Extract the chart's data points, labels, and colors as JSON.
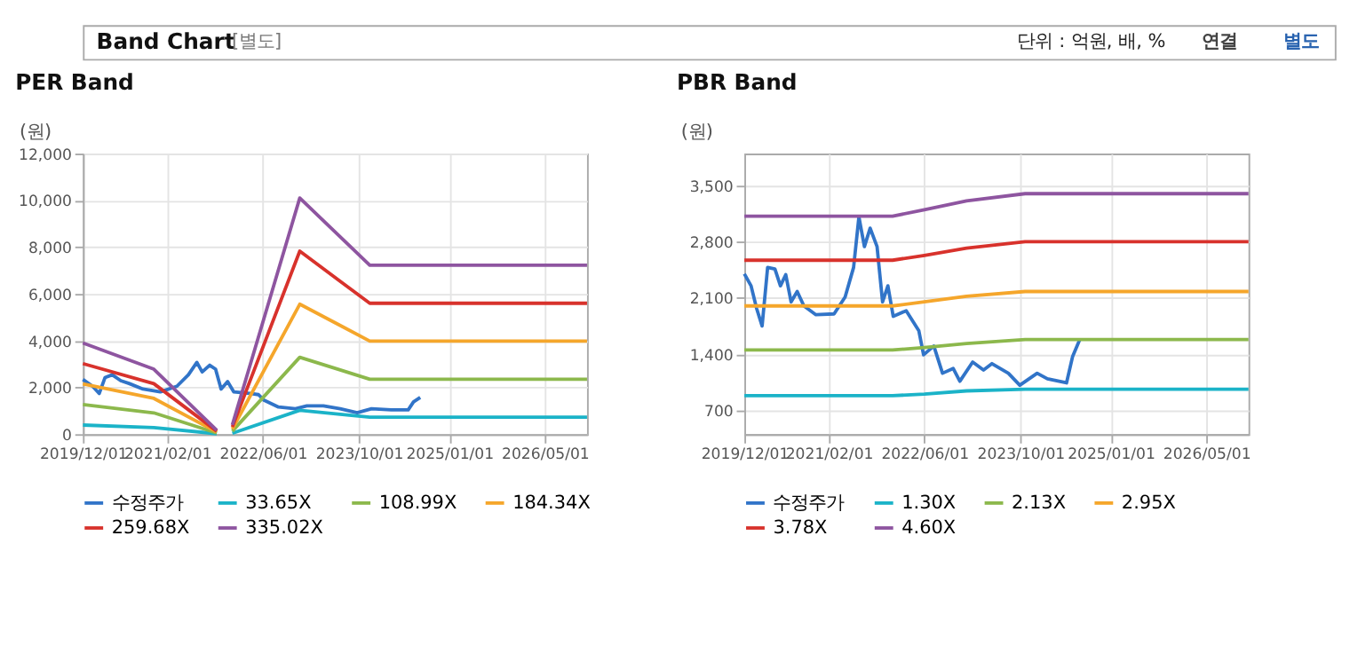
{
  "chart_data": [
    {
      "type": "line",
      "title": "PER Band",
      "ylabel": "(원)",
      "annotations": [
        "Band Chart",
        "[별도]",
        "단위 : 억원, 배, %",
        "연결",
        "별도"
      ],
      "xlim": [
        "2019-12-01",
        "2026-12-01"
      ],
      "xticks": [
        {
          "value": "2019-12-01",
          "label": "2019/12/01"
        },
        {
          "value": "2021-02-01",
          "label": "2021/02/01"
        },
        {
          "value": "2022-06-01",
          "label": "2022/06/01"
        },
        {
          "value": "2023-10-01",
          "label": "2023/10/01"
        },
        {
          "value": "2025-01-01",
          "label": "2025/01/01"
        },
        {
          "value": "2026-05-01",
          "label": "2026/05/01"
        }
      ],
      "ylim": [
        0,
        12000
      ],
      "yticks": [
        {
          "value": 0,
          "label": "0"
        },
        {
          "value": 2000,
          "label": "2,000"
        },
        {
          "value": 4000,
          "label": "4,000"
        },
        {
          "value": 6000,
          "label": "6,000"
        },
        {
          "value": 8000,
          "label": "8,000"
        },
        {
          "value": 10000,
          "label": "10,000"
        },
        {
          "value": 12000,
          "label": "12,000"
        }
      ],
      "grid": true,
      "legend": "bottom",
      "series": [
        {
          "name": "수정주가",
          "color": "#3174c8",
          "x": [
            "2019-12-01",
            "2020-01-19",
            "2020-02-22",
            "2020-03-22",
            "2020-04-28",
            "2020-06-10",
            "2020-07-22",
            "2020-10-01",
            "2020-12-28",
            "2021-03-22",
            "2021-05-19",
            "2021-07-01",
            "2021-07-28",
            "2021-09-04",
            "2021-10-04",
            "2021-11-01",
            "2021-12-04",
            "2022-01-04",
            "2022-03-28",
            "2022-05-10",
            "2022-06-07",
            "2022-08-19",
            "2022-11-13",
            "2023-01-10",
            "2023-04-04",
            "2023-06-28",
            "2023-09-22",
            "2023-12-04",
            "2024-03-13",
            "2024-06-07",
            "2024-07-04",
            "2024-08-07"
          ],
          "values": [
            2340,
            2050,
            1740,
            2420,
            2540,
            2290,
            2170,
            1930,
            1810,
            2050,
            2540,
            3070,
            2660,
            2950,
            2780,
            1930,
            2250,
            1810,
            1740,
            1690,
            1450,
            1160,
            1090,
            1210,
            1210,
            1090,
            920,
            1090,
            1040,
            1040,
            1380,
            1570
          ]
        },
        {
          "name": "33.65X",
          "color": "#1bb3c8",
          "x": [
            "2019-12-01",
            "2020-11-25",
            "2021-10-10",
            "2021-11-15",
            "2021-12-28",
            "2022-12-05",
            "2023-06-28",
            "2023-11-25",
            "2026-12-01"
          ],
          "values": [
            390,
            280,
            20,
            null,
            40,
            1020,
            850,
            730,
            730
          ]
        },
        {
          "name": "108.99X",
          "color": "#8cb84c",
          "x": [
            "2019-12-01",
            "2020-11-25",
            "2021-10-10",
            "2021-11-15",
            "2021-12-28",
            "2022-12-05",
            "2023-06-28",
            "2023-11-25",
            "2026-12-01"
          ],
          "values": [
            1270,
            910,
            50,
            null,
            130,
            3290,
            2750,
            2350,
            2350
          ]
        },
        {
          "name": "184.34X",
          "color": "#f5a62b",
          "x": [
            "2019-12-01",
            "2020-11-25",
            "2021-10-10",
            "2021-11-15",
            "2021-12-28",
            "2022-12-05",
            "2023-06-28",
            "2023-11-25",
            "2026-12-01"
          ],
          "values": [
            2150,
            1530,
            90,
            null,
            220,
            5560,
            4650,
            3980,
            3980
          ]
        },
        {
          "name": "259.68X",
          "color": "#d8322c",
          "x": [
            "2019-12-01",
            "2020-11-25",
            "2021-10-10",
            "2021-11-15",
            "2021-12-28",
            "2022-12-05",
            "2023-06-28",
            "2023-11-25",
            "2026-12-01"
          ],
          "values": [
            3020,
            2160,
            130,
            null,
            310,
            7830,
            6540,
            5600,
            5600
          ]
        },
        {
          "name": "335.02X",
          "color": "#8e55a0",
          "x": [
            "2019-12-01",
            "2020-11-25",
            "2021-10-10",
            "2021-11-15",
            "2021-12-28",
            "2022-12-05",
            "2023-06-28",
            "2023-11-25",
            "2026-12-01"
          ],
          "values": [
            3900,
            2780,
            170,
            null,
            400,
            10100,
            8440,
            7230,
            7230
          ]
        }
      ]
    },
    {
      "type": "line",
      "title": "PBR Band",
      "ylabel": "(원)",
      "xlim": [
        "2019-12-01",
        "2026-12-01"
      ],
      "xticks": [
        {
          "value": "2019-12-01",
          "label": "2019/12/01"
        },
        {
          "value": "2021-02-01",
          "label": "2021/02/01"
        },
        {
          "value": "2022-06-01",
          "label": "2022/06/01"
        },
        {
          "value": "2023-10-01",
          "label": "2023/10/01"
        },
        {
          "value": "2025-01-01",
          "label": "2025/01/01"
        },
        {
          "value": "2026-05-01",
          "label": "2026/05/01"
        }
      ],
      "ylim": [
        400,
        3900
      ],
      "yticks": [
        {
          "value": 700,
          "label": "700"
        },
        {
          "value": 1400,
          "label": "1,400"
        },
        {
          "value": 2100,
          "label": "2,100"
        },
        {
          "value": 2800,
          "label": "2,800"
        },
        {
          "value": 3500,
          "label": "3,500"
        }
      ],
      "grid": true,
      "legend": "bottom",
      "series": [
        {
          "name": "수정주가",
          "color": "#3174c8",
          "x": [
            "2019-12-01",
            "2020-01-04",
            "2020-02-01",
            "2020-02-29",
            "2020-03-28",
            "2020-05-04",
            "2020-06-01",
            "2020-06-28",
            "2020-07-25",
            "2020-08-25",
            "2020-09-28",
            "2020-11-28",
            "2021-02-28",
            "2021-04-25",
            "2021-06-07",
            "2021-07-04",
            "2021-08-01",
            "2021-08-30",
            "2021-10-04",
            "2021-11-01",
            "2021-11-28",
            "2021-12-25",
            "2022-03-01",
            "2022-05-04",
            "2022-05-28",
            "2022-07-19",
            "2022-09-01",
            "2022-10-25",
            "2022-11-28",
            "2023-02-01",
            "2023-03-28",
            "2023-05-10",
            "2023-08-01",
            "2023-09-28",
            "2023-12-25",
            "2024-02-15",
            "2024-05-22",
            "2024-06-22",
            "2024-07-28"
          ],
          "values": [
            2400,
            2250,
            1970,
            1750,
            2480,
            2460,
            2250,
            2390,
            2050,
            2180,
            2000,
            1890,
            1900,
            2110,
            2480,
            3110,
            2740,
            2970,
            2740,
            2050,
            2250,
            1870,
            1940,
            1690,
            1390,
            1500,
            1160,
            1220,
            1060,
            1300,
            1200,
            1280,
            1160,
            1010,
            1160,
            1090,
            1040,
            1370,
            1580
          ]
        },
        {
          "name": "1.30X",
          "color": "#1bb3c8",
          "x": [
            "2019-12-01",
            "2021-12-22",
            "2022-06-01",
            "2023-01-01",
            "2023-10-25",
            "2026-12-01"
          ],
          "values": [
            880,
            880,
            900,
            940,
            960,
            960
          ]
        },
        {
          "name": "2.13X",
          "color": "#8cb84c",
          "x": [
            "2019-12-01",
            "2021-12-22",
            "2022-06-01",
            "2023-01-01",
            "2023-10-25",
            "2026-12-01"
          ],
          "values": [
            1450,
            1450,
            1480,
            1530,
            1580,
            1580
          ]
        },
        {
          "name": "2.95X",
          "color": "#f5a62b",
          "x": [
            "2019-12-01",
            "2021-12-22",
            "2022-06-01",
            "2023-01-01",
            "2023-10-25",
            "2026-12-01"
          ],
          "values": [
            2000,
            2000,
            2050,
            2120,
            2180,
            2180
          ]
        },
        {
          "name": "3.78X",
          "color": "#d8322c",
          "x": [
            "2019-12-01",
            "2021-12-22",
            "2022-06-01",
            "2023-01-01",
            "2023-10-25",
            "2026-12-01"
          ],
          "values": [
            2570,
            2570,
            2630,
            2720,
            2800,
            2800
          ]
        },
        {
          "name": "4.60X",
          "color": "#8e55a0",
          "x": [
            "2019-12-01",
            "2021-12-22",
            "2022-06-01",
            "2023-01-01",
            "2023-10-25",
            "2026-12-01"
          ],
          "values": [
            3120,
            3120,
            3200,
            3310,
            3400,
            3400
          ]
        }
      ]
    }
  ]
}
